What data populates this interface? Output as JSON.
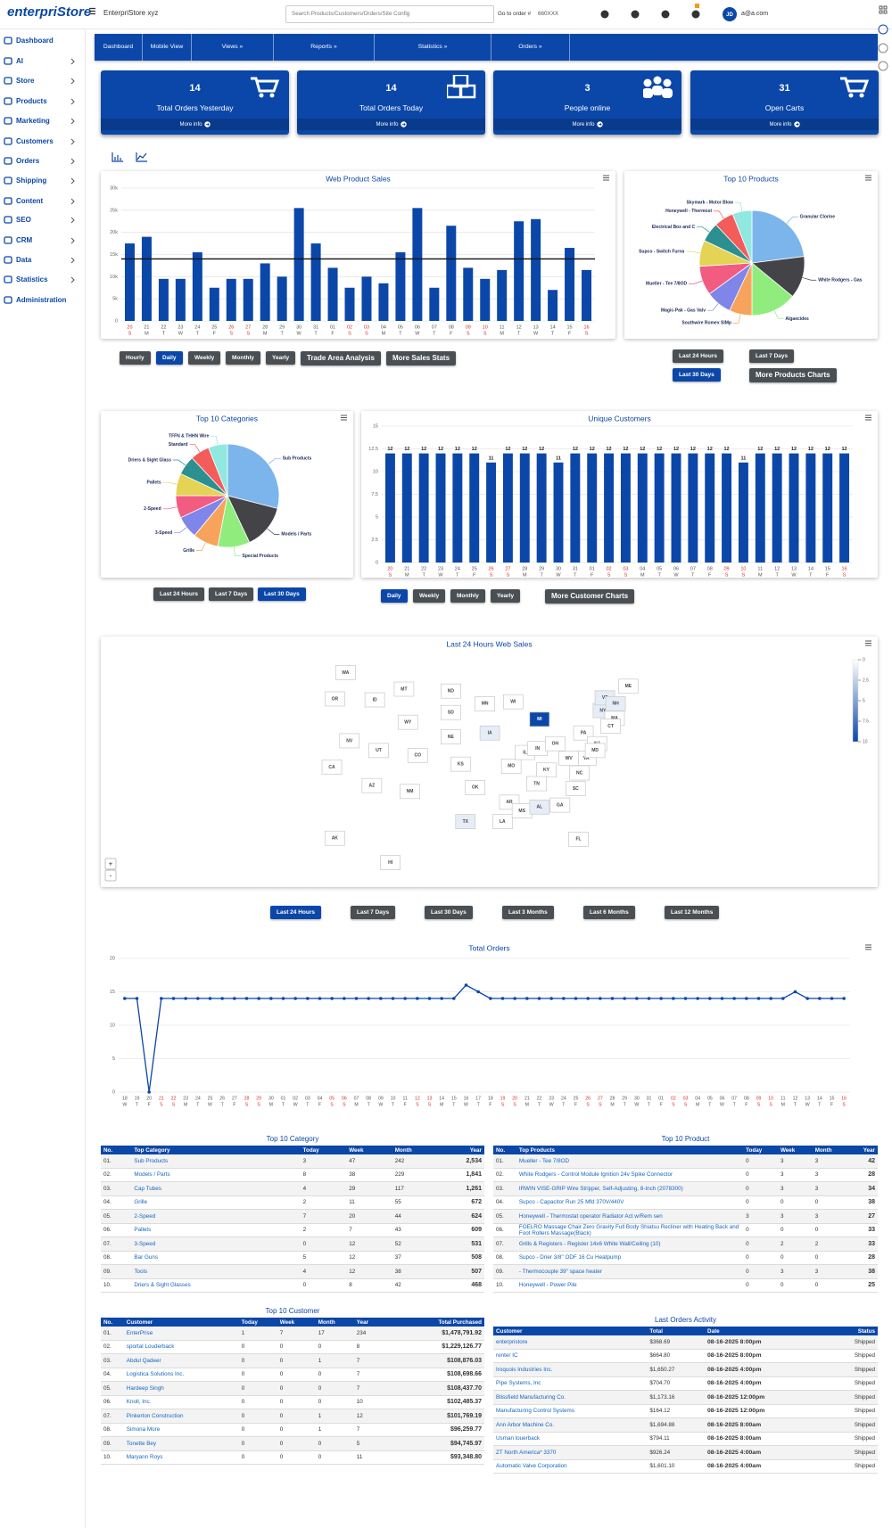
{
  "header": {
    "logo": "enterpriStore",
    "store": "EnterpriStore xyz",
    "search_placeholder": "Search Products/Customers/Orders/Site Config",
    "order_label": "Go to order #",
    "order_placeholder": "660XXX",
    "user_initials": "JD",
    "user_email": "a@a.com"
  },
  "sidebar": [
    "Dashboard",
    "AI",
    "Store",
    "Products",
    "Marketing",
    "Customers",
    "Orders",
    "Shipping",
    "Content",
    "SEO",
    "CRM",
    "Data",
    "Statistics",
    "Administration"
  ],
  "nav": [
    "Dashboard",
    "Mobile View",
    "Views »",
    "Reports »",
    "Statistics »",
    "Orders »"
  ],
  "stat_cards": [
    {
      "value": 14,
      "label": "Total Orders Yesterday",
      "link": "More info"
    },
    {
      "value": 14,
      "label": "Total Orders Today",
      "link": "More info"
    },
    {
      "value": 3,
      "label": "People online",
      "link": "More info"
    },
    {
      "value": 31,
      "label": "Open Carts",
      "link": "More info"
    }
  ],
  "web_product_sales": {
    "type": "bar",
    "title": "Web Product Sales",
    "color": "#0b47a8",
    "grid": true,
    "label_color": "#555555",
    "weekend_color": "#d32f2f",
    "categories": [
      "20",
      "21",
      "22",
      "23",
      "24",
      "25",
      "26",
      "27",
      "28",
      "29",
      "30",
      "31",
      "01",
      "02",
      "03",
      "04",
      "05",
      "06",
      "07",
      "08",
      "09",
      "10",
      "11",
      "12",
      "13",
      "14",
      "15",
      "16"
    ],
    "weekdays": [
      "S",
      "M",
      "T",
      "W",
      "T",
      "F",
      "S",
      "S",
      "M",
      "T",
      "W",
      "T",
      "F",
      "S",
      "S",
      "M",
      "T",
      "W",
      "T",
      "F",
      "S",
      "S",
      "M",
      "T",
      "W",
      "T",
      "F",
      "S"
    ],
    "weekend": [
      0,
      6,
      7,
      13,
      14,
      20,
      21,
      27
    ],
    "values": [
      17500,
      19000,
      9500,
      9500,
      15500,
      7500,
      9500,
      9500,
      13000,
      10000,
      25500,
      17500,
      12000,
      7500,
      10000,
      8500,
      15500,
      25500,
      7500,
      21500,
      12000,
      9500,
      11500,
      22500,
      23000,
      7000,
      16500,
      11500
    ],
    "average": 14000,
    "average_color": "#111111",
    "ylim": [
      0,
      30000
    ],
    "yticks": [
      0,
      {
        "value": 5000,
        "label": "5k"
      },
      {
        "value": 10000,
        "label": "10k"
      },
      {
        "value": 15000,
        "label": "15k"
      },
      {
        "value": 20000,
        "label": "20k"
      },
      {
        "value": 25000,
        "label": "25k"
      },
      {
        "value": 30000,
        "label": "30k"
      }
    ]
  },
  "sales_buttons": {
    "labels": [
      "Hourly",
      "Daily",
      "Weekly",
      "Monthly",
      "Yearly",
      "Trade Area Analysis",
      "More Sales Stats"
    ],
    "active": 1
  },
  "top_products": {
    "type": "pie",
    "title": "Top 10 Products",
    "categories": [
      "Granular Clorine",
      "White Rodgers - Gas",
      "Algaecides",
      "Southwire Romex SIMp",
      "Magic-Pak - Gas Valv",
      "Mueller - Tee 7/8OD",
      "Supco - Switch Furna",
      "Electrical Box and C",
      "Honeywell - Thermost",
      "Skymark - Motor Blow"
    ],
    "values": [
      23,
      13,
      14,
      7,
      8,
      9,
      8,
      6,
      6,
      6
    ],
    "colors": [
      "#7cb5ec",
      "#434348",
      "#90ed7d",
      "#f7a35c",
      "#8085e9",
      "#f15c80",
      "#e4d354",
      "#2b908f",
      "#f45b5b",
      "#91e8e1"
    ]
  },
  "product_buttons": {
    "labels": [
      "Last 24 Hours",
      "Last 7 Days",
      "Last 30 Days",
      "More Products Charts"
    ],
    "active": 2
  },
  "top_categories": {
    "type": "pie",
    "title": "Top 10 Categories",
    "categories": [
      "Sub Products",
      "Models / Parts",
      "Special Products",
      "Grille",
      "3-Speed",
      "2-Speed",
      "Pallets",
      "Driers & Sight Glass",
      "Standard",
      "TFFN & THHN Wire"
    ],
    "values": [
      29,
      14,
      10,
      8,
      7,
      7,
      7,
      6,
      6,
      6
    ],
    "colors": [
      "#7cb5ec",
      "#434348",
      "#90ed7d",
      "#f7a35c",
      "#8085e9",
      "#f15c80",
      "#e4d354",
      "#2b908f",
      "#f45b5b",
      "#91e8e1"
    ]
  },
  "category_buttons": {
    "labels": [
      "Last 24 Hours",
      "Last 7 Days",
      "Last 30 Days"
    ],
    "active": 2
  },
  "unique_customers": {
    "type": "bar",
    "title": "Unique Customers",
    "color": "#0b47a8",
    "grid": true,
    "data_labels": true,
    "label_color": "#555555",
    "weekend_color": "#d32f2f",
    "categories": [
      "20",
      "21",
      "22",
      "23",
      "24",
      "25",
      "26",
      "27",
      "28",
      "29",
      "30",
      "31",
      "01",
      "02",
      "03",
      "04",
      "05",
      "06",
      "07",
      "08",
      "09",
      "10",
      "11",
      "12",
      "13",
      "14",
      "15",
      "16"
    ],
    "weekdays": [
      "S",
      "M",
      "T",
      "W",
      "T",
      "F",
      "S",
      "S",
      "M",
      "T",
      "W",
      "T",
      "F",
      "S",
      "S",
      "M",
      "T",
      "W",
      "T",
      "F",
      "S",
      "S",
      "M",
      "T",
      "W",
      "T",
      "F",
      "S"
    ],
    "weekend": [
      0,
      6,
      7,
      13,
      14,
      20,
      21,
      27
    ],
    "values": [
      12,
      12,
      12,
      12,
      12,
      12,
      11,
      12,
      12,
      12,
      11,
      12,
      12,
      12,
      12,
      12,
      12,
      12,
      12,
      12,
      12,
      11,
      12,
      12,
      12,
      12,
      12,
      12
    ],
    "ylim": [
      0,
      15
    ],
    "yticks": [
      0,
      2.5,
      5,
      7.5,
      10,
      12.5,
      15
    ]
  },
  "customer_buttons": {
    "labels": [
      "Daily",
      "Weekly",
      "Monthly",
      "Yearly",
      "More Customer Charts"
    ],
    "active": 0
  },
  "web_sales_map": {
    "type": "map",
    "title": "Last 24 Hours Web Sales",
    "states": [
      "WA",
      "OR",
      "CA",
      "NV",
      "ID",
      "MT",
      "WY",
      "UT",
      "AZ",
      "CO",
      "NM",
      "ND",
      "SD",
      "NE",
      "KS",
      "OK",
      "TX",
      "MN",
      "IA",
      "MO",
      "AR",
      "LA",
      "WI",
      "IL",
      "MI",
      "IN",
      "OH",
      "KY",
      "TN",
      "MS",
      "AL",
      "GA",
      "FL",
      "SC",
      "NC",
      "VA",
      "WV",
      "PA",
      "NY",
      "VT",
      "NH",
      "ME",
      "MA",
      "CT",
      "NJ",
      "MD",
      "AK",
      "HI"
    ],
    "values": [
      0,
      0,
      0,
      0,
      0,
      0,
      0,
      0,
      0,
      0,
      0,
      0,
      0,
      0,
      0,
      0,
      1,
      0,
      1,
      0,
      0,
      0,
      0,
      0,
      10,
      0,
      0,
      0,
      0,
      0,
      1,
      0,
      0,
      0,
      0,
      0,
      0,
      0,
      1,
      1,
      1,
      0,
      0,
      0,
      0,
      0,
      0,
      0
    ],
    "color_range": [
      "#ffffff",
      "#0b47a8"
    ],
    "clim": [
      0,
      10
    ],
    "legend_ticks": [
      0,
      2.5,
      5,
      7.5,
      10
    ],
    "zoom": [
      "+",
      "-"
    ]
  },
  "map_buttons": {
    "labels": [
      "Last 24 Hours",
      "Last 7 Days",
      "Last 30 Days",
      "Last 3 Months",
      "Last 6 Months",
      "Last 12 Months"
    ],
    "active": 0
  },
  "total_orders": {
    "type": "line",
    "title": "Total Orders",
    "color": "#0b47a8",
    "grid": true,
    "label_color": "#555555",
    "weekend_color": "#d32f2f",
    "categories": [
      "18",
      "19",
      "20",
      "21",
      "22",
      "23",
      "24",
      "25",
      "26",
      "27",
      "28",
      "29",
      "30",
      "01",
      "02",
      "03",
      "04",
      "05",
      "06",
      "07",
      "08",
      "09",
      "10",
      "11",
      "12",
      "13",
      "14",
      "15",
      "16",
      "17",
      "18",
      "19",
      "20",
      "21",
      "22",
      "23",
      "24",
      "25",
      "26",
      "27",
      "28",
      "29",
      "30",
      "31",
      "01",
      "02",
      "03",
      "04",
      "05",
      "06",
      "07",
      "08",
      "09",
      "10",
      "11",
      "12",
      "13",
      "14",
      "15",
      "16"
    ],
    "weekdays": [
      "W",
      "T",
      "F",
      "S",
      "S",
      "M",
      "T",
      "W",
      "T",
      "F",
      "S",
      "S",
      "M",
      "T",
      "W",
      "T",
      "F",
      "S",
      "S",
      "M",
      "T",
      "W",
      "T",
      "F",
      "S",
      "S",
      "M",
      "T",
      "W",
      "T",
      "F",
      "S",
      "S",
      "M",
      "T",
      "W",
      "T",
      "F",
      "S",
      "S",
      "M",
      "T",
      "W",
      "T",
      "F",
      "S",
      "S",
      "M",
      "T",
      "W",
      "T",
      "F",
      "S",
      "S",
      "M",
      "T",
      "W",
      "T",
      "F",
      "S"
    ],
    "weekend": [
      3,
      4,
      10,
      11,
      17,
      18,
      24,
      25,
      31,
      32,
      38,
      39,
      45,
      46,
      52,
      53,
      59
    ],
    "values": [
      14,
      14,
      0,
      14,
      14,
      14,
      14,
      14,
      14,
      14,
      14,
      14,
      14,
      14,
      14,
      14,
      14,
      14,
      14,
      14,
      14,
      14,
      14,
      14,
      14,
      14,
      14,
      14,
      16,
      15,
      14,
      14,
      14,
      14,
      14,
      14,
      14,
      14,
      14,
      14,
      14,
      14,
      14,
      14,
      14,
      14,
      14,
      14,
      14,
      14,
      14,
      14,
      14,
      14,
      14,
      15,
      14,
      14,
      14,
      14
    ],
    "ylim": [
      0,
      20
    ],
    "yticks": [
      0,
      5,
      10,
      15,
      20
    ]
  },
  "tables": {
    "top_category": {
      "title": "Top 10 Category",
      "columns": [
        "No.",
        "Top Category",
        "Today",
        "Week",
        "Month",
        "Year"
      ],
      "rows": [
        [
          "01.",
          "Sub Products",
          "3",
          "47",
          "242",
          "2,534"
        ],
        [
          "02.",
          "Models / Parts",
          "8",
          "38",
          "229",
          "1,841"
        ],
        [
          "03.",
          "Cap Tubes",
          "4",
          "29",
          "117",
          "1,261"
        ],
        [
          "04.",
          "Grille",
          "2",
          "11",
          "55",
          "672"
        ],
        [
          "05.",
          "2-Speed",
          "7",
          "20",
          "44",
          "624"
        ],
        [
          "06.",
          "Pallets",
          "2",
          "7",
          "43",
          "609"
        ],
        [
          "07.",
          "3-Speed",
          "0",
          "12",
          "52",
          "531"
        ],
        [
          "08.",
          "Bar Guns",
          "5",
          "12",
          "37",
          "508"
        ],
        [
          "09.",
          "Tools",
          "4",
          "12",
          "38",
          "507"
        ],
        [
          "10.",
          "Driers & Sight Glasses",
          "0",
          "8",
          "42",
          "468"
        ]
      ]
    },
    "top_product": {
      "title": "Top 10 Product",
      "columns": [
        "No.",
        "Top Products",
        "Today",
        "Week",
        "Month",
        "Year"
      ],
      "rows": [
        [
          "01.",
          "Mueller - Tee 7/8OD",
          "0",
          "3",
          "3",
          "42"
        ],
        [
          "02.",
          "White Rodgers - Control Module Ignition 24v Spike Connector",
          "0",
          "3",
          "3",
          "28"
        ],
        [
          "03.",
          "IRWIN VISE-GRIP Wire Stripper, Self-Adjusting, 8-Inch (2078300)",
          "0",
          "3",
          "3",
          "34"
        ],
        [
          "04.",
          "Supco - Capacitor Run 25 Mfd 370V/440V",
          "0",
          "0",
          "0",
          "38"
        ],
        [
          "05.",
          "Honeywell - Thermostat operator Radiator Act w/Rem sen",
          "3",
          "3",
          "3",
          "27"
        ],
        [
          "06.",
          "FOELRO Massage Chair Zero Gravity Full Body Shiatsu Recliner with Heating Back and Foot Rollers Massage(Black)",
          "0",
          "0",
          "0",
          "33"
        ],
        [
          "07.",
          "Grills & Registers - Register 14x6 White Wall/Ceiling (10)",
          "0",
          "2",
          "2",
          "33"
        ],
        [
          "08.",
          "Supco - Drier 3/8\" ODF 16 Cu Heatpump",
          "0",
          "0",
          "0",
          "28"
        ],
        [
          "09.",
          "- Thermocouple 39\" space heater",
          "0",
          "3",
          "3",
          "38"
        ],
        [
          "10.",
          "Honeywell - Power Pile",
          "0",
          "0",
          "0",
          "25"
        ]
      ]
    },
    "top_customer": {
      "title": "Top 10 Customer",
      "columns": [
        "No.",
        "Customer",
        "Today",
        "Week",
        "Month",
        "Year",
        "Total Purchased"
      ],
      "rows": [
        [
          "01.",
          "EnterPrise",
          "1",
          "7",
          "17",
          "234",
          "$1,478,791.92"
        ],
        [
          "02.",
          "sportal Louderback",
          "0",
          "0",
          "0",
          "8",
          "$1,229,126.77"
        ],
        [
          "03.",
          "Abdul Qadeer",
          "0",
          "0",
          "1",
          "7",
          "$108,876.03"
        ],
        [
          "04.",
          "Logistica Solutions Inc.",
          "0",
          "0",
          "0",
          "7",
          "$108,698.66"
        ],
        [
          "05.",
          "Hardeep Singh",
          "0",
          "0",
          "0",
          "7",
          "$108,437.70"
        ],
        [
          "06.",
          "Knoll, Inc.",
          "0",
          "0",
          "0",
          "10",
          "$102,485.37"
        ],
        [
          "07.",
          "Pinkerton Construction",
          "0",
          "0",
          "1",
          "12",
          "$101,769.19"
        ],
        [
          "08.",
          "Simona More",
          "0",
          "0",
          "1",
          "7",
          "$96,259.77"
        ],
        [
          "09.",
          "Tonette Bey",
          "0",
          "0",
          "0",
          "5",
          "$94,745.97"
        ],
        [
          "10.",
          "Maryann Roys",
          "0",
          "0",
          "0",
          "11",
          "$93,348.80"
        ]
      ]
    },
    "last_orders": {
      "title": "Last Orders Activity",
      "columns": [
        "Customer",
        "Total",
        "Date",
        "Status"
      ],
      "rows": [
        [
          "enterpristore",
          "$368.69",
          "08-16-2025 8:00pm",
          "Shipped"
        ],
        [
          "renter IC",
          "$664.80",
          "08-16-2025 8:00pm",
          "Shipped"
        ],
        [
          "Iroquois Industries Inc.",
          "$1,650.27",
          "08-16-2025 4:00pm",
          "Shipped"
        ],
        [
          "Pipe Systems, Inc",
          "$704.70",
          "08-16-2025 4:00pm",
          "Shipped"
        ],
        [
          "Blissfield Manufacturing Co.",
          "$1,173.16",
          "08-16-2025 12:00pm",
          "Shipped"
        ],
        [
          "Manufacturing Control Systems",
          "$164.12",
          "08-16-2025 12:00pm",
          "Shipped"
        ],
        [
          "Ann Arbor Machine Co.",
          "$1,694.88",
          "08-16-2025 8:00am",
          "Shipped"
        ],
        [
          "Usman louerback",
          "$794.11",
          "08-16-2025 8:00am",
          "Shipped"
        ],
        [
          "ZT North America* 3370",
          "$926.24",
          "08-16-2025 4:00am",
          "Shipped"
        ],
        [
          "Automatic Valve Corporation",
          "$1,601.10",
          "08-16-2025 4:00am",
          "Shipped"
        ]
      ]
    }
  }
}
